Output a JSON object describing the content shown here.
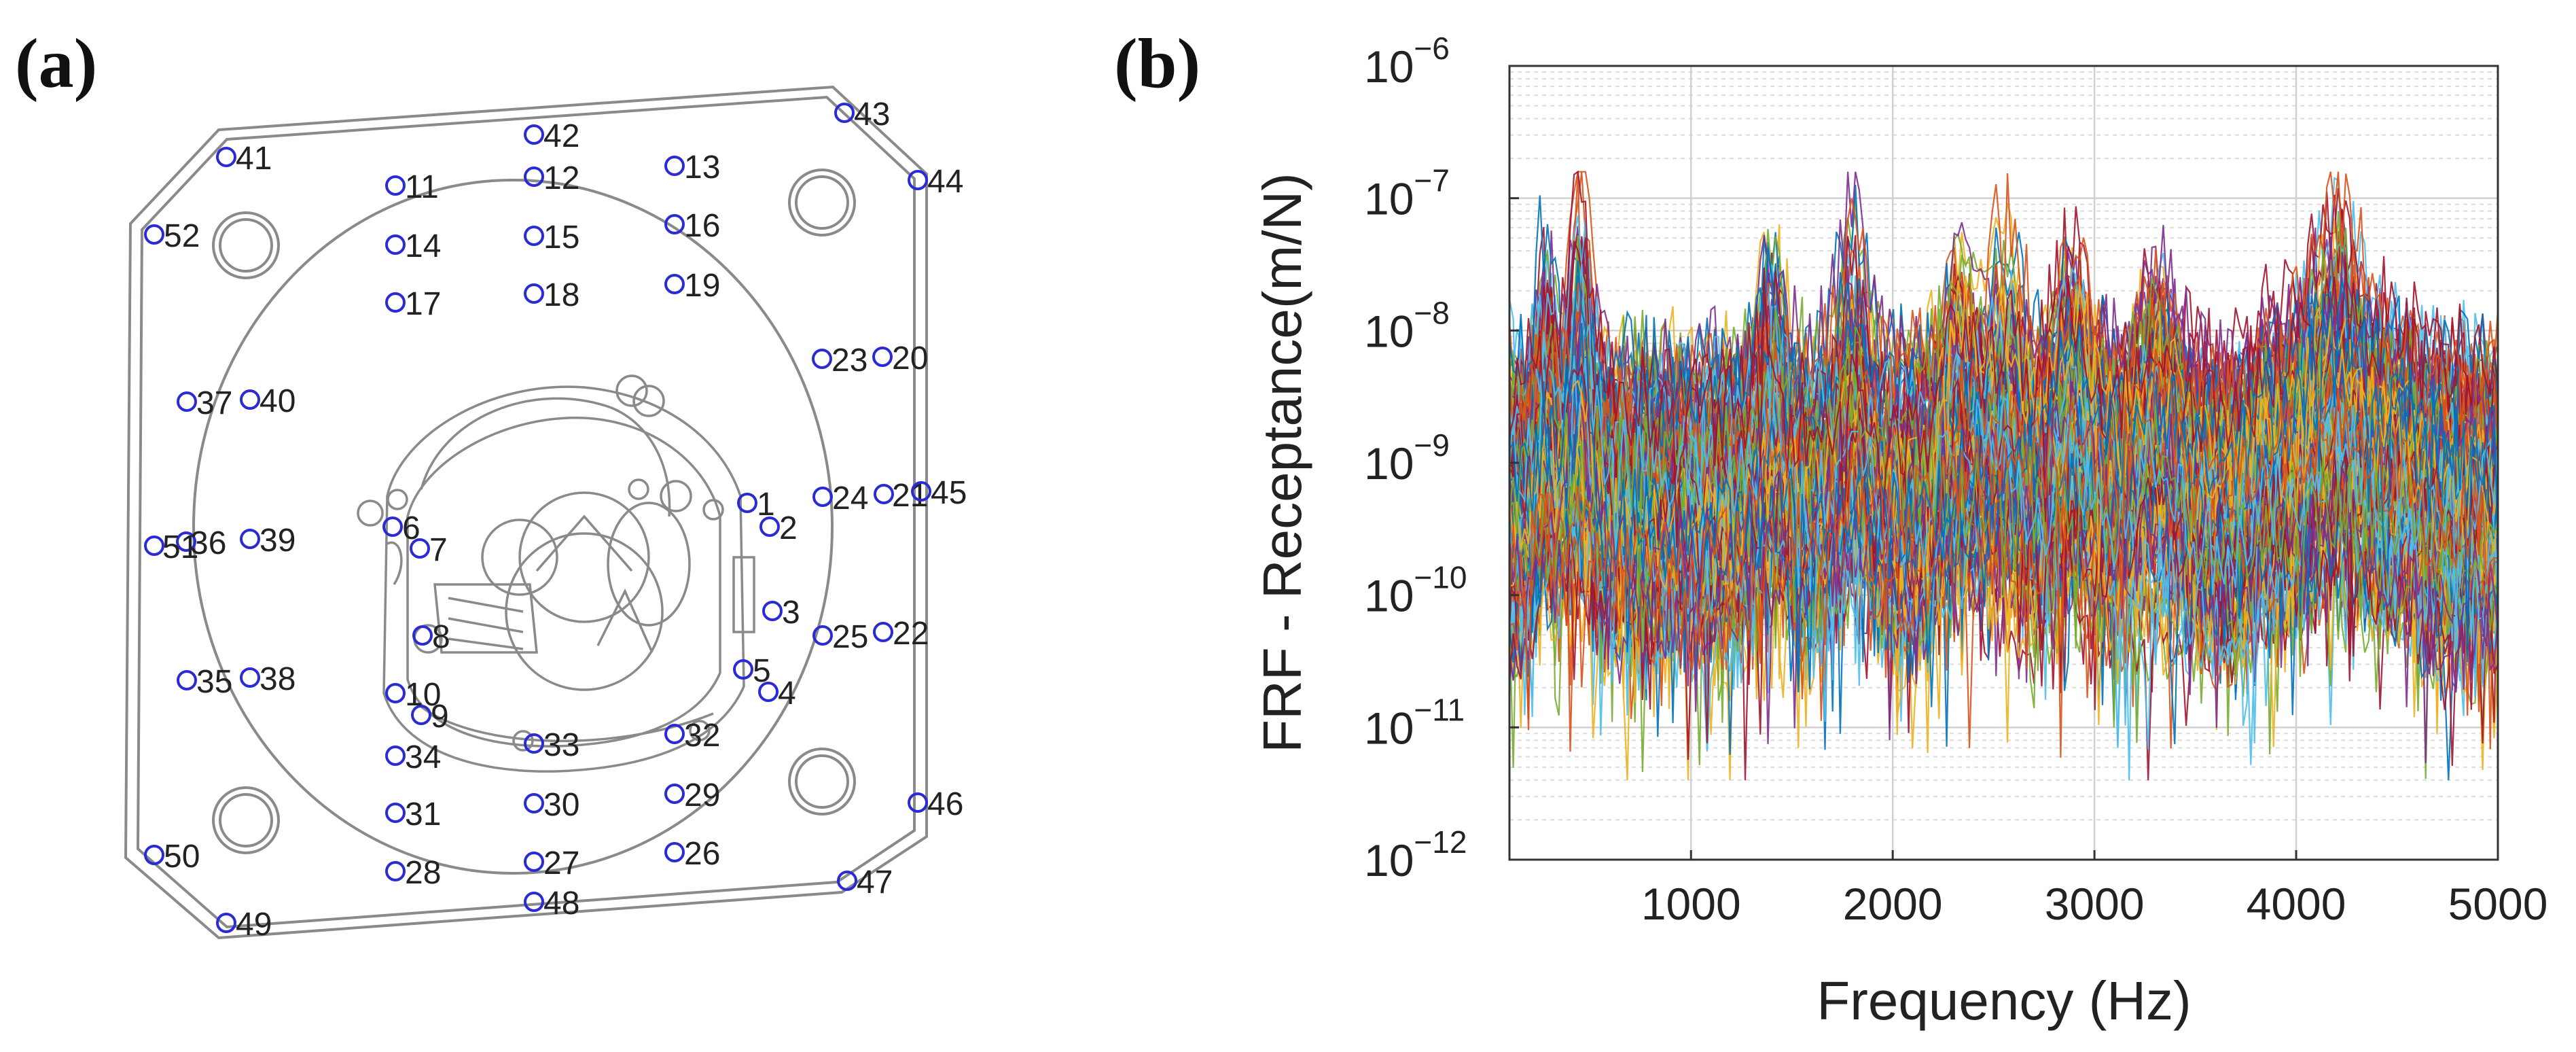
{
  "panel_a": {
    "label": "(a)",
    "measurement_points": [
      {
        "id": "1"
      },
      {
        "id": "2"
      },
      {
        "id": "3"
      },
      {
        "id": "4"
      },
      {
        "id": "5"
      },
      {
        "id": "6"
      },
      {
        "id": "7"
      },
      {
        "id": "8"
      },
      {
        "id": "9"
      },
      {
        "id": "10"
      },
      {
        "id": "11"
      },
      {
        "id": "12"
      },
      {
        "id": "13"
      },
      {
        "id": "14"
      },
      {
        "id": "15"
      },
      {
        "id": "16"
      },
      {
        "id": "17"
      },
      {
        "id": "18"
      },
      {
        "id": "19"
      },
      {
        "id": "20"
      },
      {
        "id": "21"
      },
      {
        "id": "22"
      },
      {
        "id": "23"
      },
      {
        "id": "24"
      },
      {
        "id": "25"
      },
      {
        "id": "26"
      },
      {
        "id": "27"
      },
      {
        "id": "28"
      },
      {
        "id": "29"
      },
      {
        "id": "30"
      },
      {
        "id": "31"
      },
      {
        "id": "32"
      },
      {
        "id": "33"
      },
      {
        "id": "34"
      },
      {
        "id": "35"
      },
      {
        "id": "36"
      },
      {
        "id": "37"
      },
      {
        "id": "38"
      },
      {
        "id": "39"
      },
      {
        "id": "40"
      },
      {
        "id": "41"
      },
      {
        "id": "42"
      },
      {
        "id": "43"
      },
      {
        "id": "44"
      },
      {
        "id": "45"
      },
      {
        "id": "46"
      },
      {
        "id": "47"
      },
      {
        "id": "48"
      },
      {
        "id": "49"
      },
      {
        "id": "50"
      },
      {
        "id": "51"
      },
      {
        "id": "52"
      }
    ],
    "marker_color": "#2b2bd6",
    "line_color": "#8a8a8a"
  },
  "panel_b": {
    "label": "(b)"
  },
  "chart_data": {
    "type": "line",
    "title": "",
    "xlabel": "Frequency (Hz)",
    "ylabel": "FRF - Receptance(m/N)",
    "xlim": [
      100,
      5000
    ],
    "ylim": [
      1e-12,
      1e-06
    ],
    "yscale": "log",
    "xticks": [
      1000,
      2000,
      3000,
      4000,
      5000
    ],
    "xtick_labels": [
      "1000",
      "2000",
      "3000",
      "4000",
      "5000"
    ],
    "ytick_labels": [
      {
        "base": "10",
        "exp": "−6"
      },
      {
        "base": "10",
        "exp": "−7"
      },
      {
        "base": "10",
        "exp": "−8"
      },
      {
        "base": "10",
        "exp": "−9"
      },
      {
        "base": "10",
        "exp": "−10"
      },
      {
        "base": "10",
        "exp": "−11"
      },
      {
        "base": "10",
        "exp": "−12"
      }
    ],
    "grid": true,
    "n_series": 156,
    "resonance_peaks_hz": [
      280,
      450,
      1400,
      1800,
      2330,
      2560,
      2900,
      3300,
      4200
    ],
    "envelope_log10": {
      "peak_max": -6.8,
      "typical_top": -8.0,
      "typical_bottom": -10.3,
      "min": -11.4
    },
    "series_colors": [
      "#0072BD",
      "#D95319",
      "#EDB120",
      "#7E2F8E",
      "#77AC30",
      "#4DBEEE",
      "#A2142F"
    ]
  }
}
